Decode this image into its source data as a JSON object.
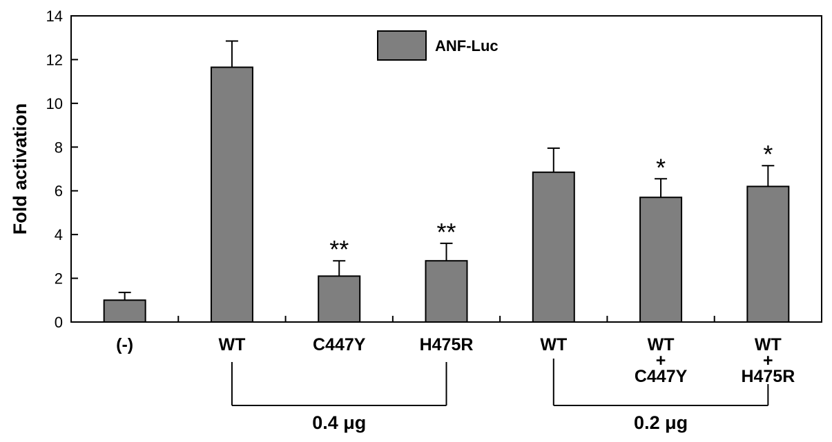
{
  "chart_data": {
    "type": "bar",
    "ylabel": "Fold  activation",
    "ylim": [
      0,
      14
    ],
    "yticks": [
      0,
      2,
      4,
      6,
      8,
      10,
      12,
      14
    ],
    "legend": {
      "label": "ANF-Luc",
      "placement": "top-center",
      "color": "#7f7f7f"
    },
    "categories": [
      [
        "(-)"
      ],
      [
        "WT"
      ],
      [
        "C447Y"
      ],
      [
        "H475R"
      ],
      [
        "WT"
      ],
      [
        "WT",
        "+",
        "C447Y"
      ],
      [
        "WT",
        "+",
        "H475R"
      ]
    ],
    "series": [
      {
        "values": [
          1.0,
          11.65,
          2.1,
          2.8,
          6.85,
          5.7,
          6.2
        ],
        "errors": [
          0.35,
          1.2,
          0.7,
          0.8,
          1.1,
          0.85,
          0.95
        ]
      }
    ],
    "significance": [
      "",
      "",
      "**",
      "**",
      "",
      "*",
      "*"
    ],
    "groups": [
      {
        "label": "0.4 μg",
        "from": 1,
        "to": 3
      },
      {
        "label": "0.2 μg",
        "from": 4,
        "to": 6
      }
    ],
    "bar_color": "#7f7f7f"
  }
}
